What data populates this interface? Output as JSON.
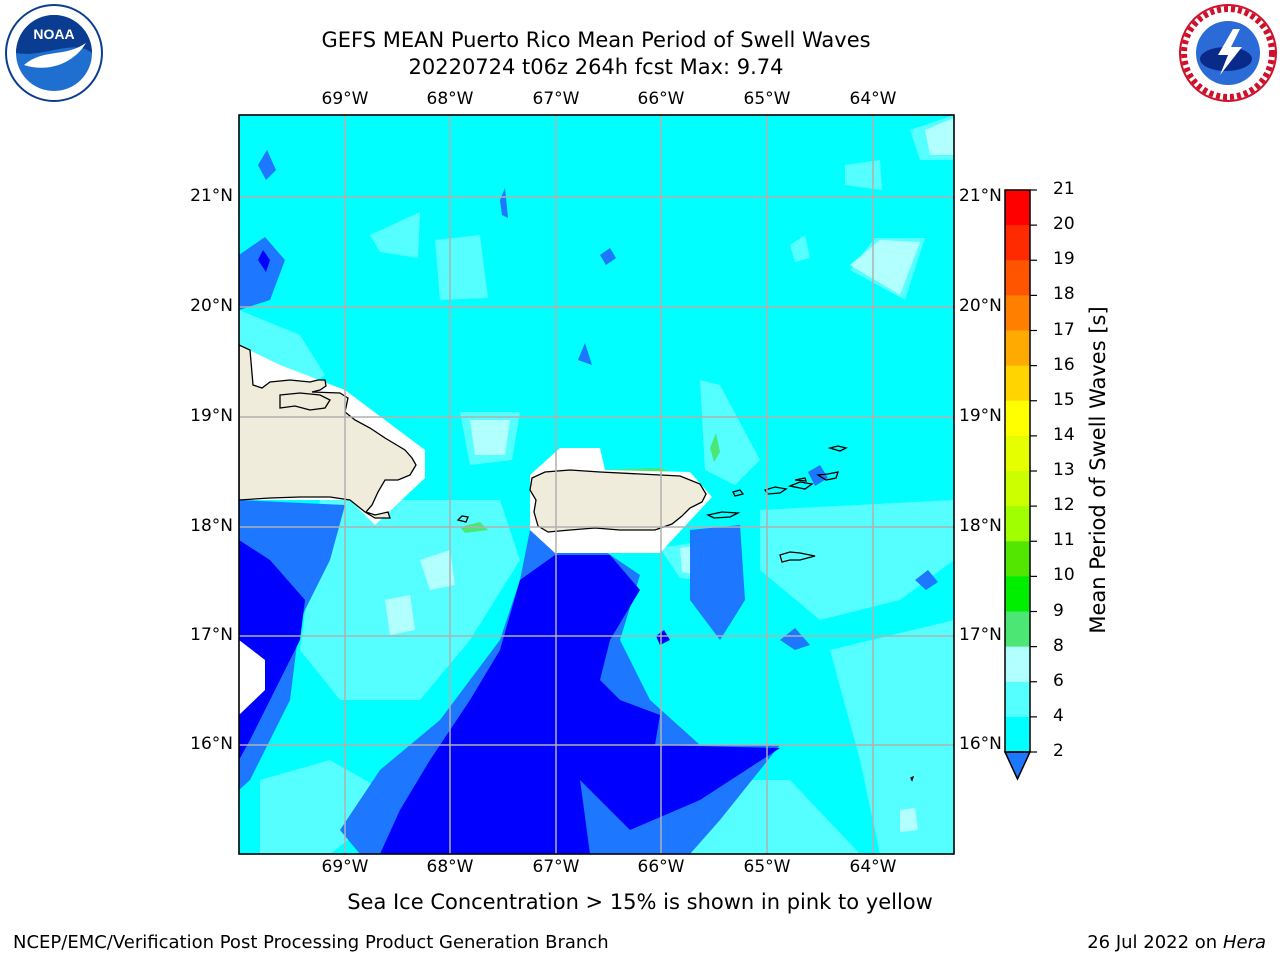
{
  "header": {
    "title_line1": "GEFS MEAN Puerto Rico Mean Period of Swell Waves",
    "title_line2": "20220724 t06z 264h fcst   Max: 9.74"
  },
  "logos": {
    "left": {
      "name": "noaa-logo",
      "text": "NOAA"
    },
    "right": {
      "name": "nws-logo",
      "text": "NATIONAL WEATHER SERVICE"
    }
  },
  "map": {
    "lon_labels": [
      "69°W",
      "68°W",
      "67°W",
      "66°W",
      "65°W",
      "64°W"
    ],
    "lat_labels": [
      "21°N",
      "20°N",
      "19°N",
      "18°N",
      "17°N",
      "16°N"
    ]
  },
  "colorbar": {
    "title": "Mean Period of Swell Waves [s]",
    "levels": [
      "21",
      "20",
      "19",
      "18",
      "17",
      "16",
      "15",
      "14",
      "13",
      "12",
      "11",
      "10",
      "9",
      "8",
      "6",
      "4",
      "2"
    ],
    "colors": [
      "#ff0000",
      "#ff2a00",
      "#ff5500",
      "#ff7f00",
      "#ffaa00",
      "#ffd400",
      "#ffff00",
      "#e6ff00",
      "#ccff00",
      "#a0ff00",
      "#52e600",
      "#00ee00",
      "#4ce675",
      "#b2ffff",
      "#55ffff",
      "#00ffff",
      "#1e78ff",
      "#0000ff"
    ]
  },
  "caption": "Sea Ice Concentration > 15% is shown in pink to yellow",
  "footer": {
    "left": "NCEP/EMC/Verification Post Processing Product Generation Branch",
    "right_date": "26 Jul 2022 on ",
    "right_host": "Hera"
  }
}
